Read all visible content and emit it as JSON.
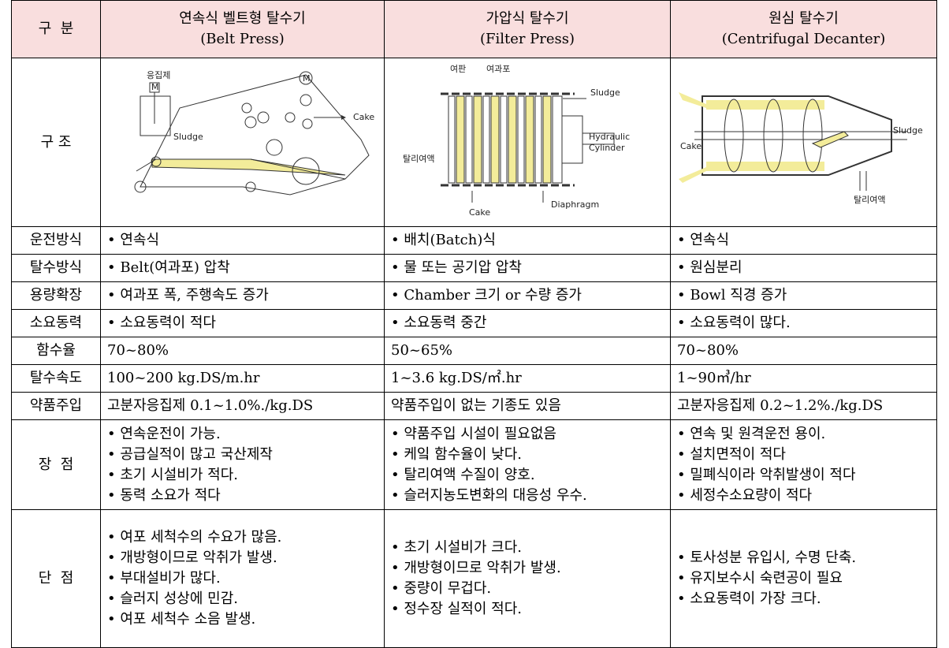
{
  "header": {
    "label": "구  분",
    "columns": [
      {
        "name": "연속식 벨트형 탈수기",
        "sub": "(Belt Press)"
      },
      {
        "name": "가압식 탈수기",
        "sub": "(Filter Press)"
      },
      {
        "name": "원심 탈수기",
        "sub": "(Centrifugal Decanter)"
      }
    ]
  },
  "structure": {
    "label": "구 조",
    "diagrams": [
      {
        "labels": [
          "응집제",
          "M",
          "Sludge",
          "Cake",
          "M"
        ]
      },
      {
        "labels": [
          "여판",
          "여과포",
          "Sludge",
          "Hydraulic",
          "Cylinder",
          "탈리여액",
          "Cake",
          "Diaphragm"
        ]
      },
      {
        "labels": [
          "Sludge",
          "Cake",
          "탈리여액"
        ]
      }
    ]
  },
  "rows": [
    {
      "label": "운전방식",
      "cells": [
        [
          "• 연속식"
        ],
        [
          "• 배치(Batch)식"
        ],
        [
          "• 연속식"
        ]
      ]
    },
    {
      "label": "탈수방식",
      "cells": [
        [
          "• Belt(여과포) 압착"
        ],
        [
          "• 물 또는 공기압 압착"
        ],
        [
          "• 원심분리"
        ]
      ]
    },
    {
      "label": "용량확장",
      "cells": [
        [
          "• 여과포 폭, 주행속도 증가"
        ],
        [
          "• Chamber 크기 or 수량 증가"
        ],
        [
          "• Bowl 직경 증가"
        ]
      ]
    },
    {
      "label": "소요동력",
      "cells": [
        [
          "• 소요동력이 적다"
        ],
        [
          "• 소요동력 중간"
        ],
        [
          "• 소요동력이 많다."
        ]
      ]
    },
    {
      "label": "함수율",
      "cells": [
        [
          "70~80%"
        ],
        [
          "50~65%"
        ],
        [
          "70~80%"
        ]
      ]
    },
    {
      "label": "탈수속도",
      "cells": [
        [
          "100~200 kg.DS/m.hr"
        ],
        [
          "1~3.6 kg.DS/㎡.hr"
        ],
        [
          "1~90㎥/hr"
        ]
      ]
    },
    {
      "label": "약품주입",
      "cells": [
        [
          "고분자응집제 0.1~1.0%./kg.DS"
        ],
        [
          "약품주입이 없는 기종도 있음"
        ],
        [
          "고분자응집제 0.2~1.2%./kg.DS"
        ]
      ]
    },
    {
      "label": "장  점",
      "cells": [
        [
          "• 연속운전이 가능.",
          "• 공급실적이 많고 국산제작",
          "• 초기 시설비가 적다.",
          "• 동력 소요가 적다"
        ],
        [
          "• 약품주입 시설이 필요없음",
          "• 케잌 함수율이 낮다.",
          "• 탈리여액 수질이 양호.",
          "• 슬러지농도변화의 대응성 우수."
        ],
        [
          "• 연속 및 원격운전 용이.",
          "• 설치면적이 적다",
          "• 밀폐식이라 악취발생이 적다",
          "• 세정수소요량이 적다"
        ]
      ]
    },
    {
      "label": "단  점",
      "cells": [
        [
          "• 여포 세척수의 수요가 많음.",
          "• 개방형이므로 악취가 발생.",
          "• 부대설비가 많다.",
          "• 슬러지 성상에 민감.",
          "• 여포 세척수 소음 발생."
        ],
        [
          "• 초기 시설비가 크다.",
          "• 개방형이므로 악취가 발생.",
          "• 중량이 무겁다.",
          "• 정수장 실적이 적다."
        ],
        [
          "• 토사성분 유입시, 수명 단축.",
          "• 유지보수시 숙련공이 필요",
          "• 소요동력이 가장 크다."
        ]
      ]
    }
  ]
}
